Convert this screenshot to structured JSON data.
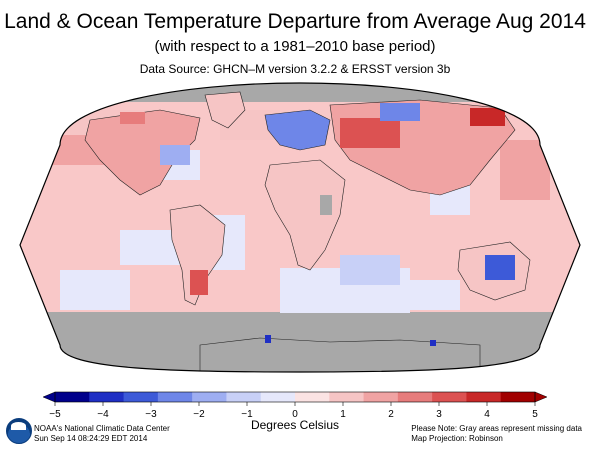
{
  "title": "Land & Ocean Temperature Departure from Average Aug 2014",
  "subtitle": "(with respect to a 1981–2010 base period)",
  "source": "Data Source: GHCN–M version 3.2.2 & ERSST version 3b",
  "colorbar": {
    "label": "Degrees Celsius",
    "ticks": [
      "−5",
      "−4",
      "−3",
      "−2",
      "−1",
      "0",
      "1",
      "2",
      "3",
      "4",
      "5"
    ],
    "range": [
      -5,
      5
    ],
    "colors": [
      "#00008b",
      "#1f2fc4",
      "#3d5ad8",
      "#6e86e8",
      "#9eaef2",
      "#c8d0f7",
      "#e6e8fb",
      "#fbe3e3",
      "#f6c5c5",
      "#f0a3a3",
      "#e77c7c",
      "#dc5252",
      "#c82828",
      "#a10000"
    ]
  },
  "footer": {
    "org": "NOAA's National Climatic Data Center",
    "timestamp": "Sun Sep 14 08:24:29 EDT 2014",
    "note": "Please Note: Gray areas represent missing data",
    "projection": "Map Projection: Robinson"
  },
  "map": {
    "missing_color": "#a8a8a8",
    "ocean_base": "#f9c8c8"
  }
}
